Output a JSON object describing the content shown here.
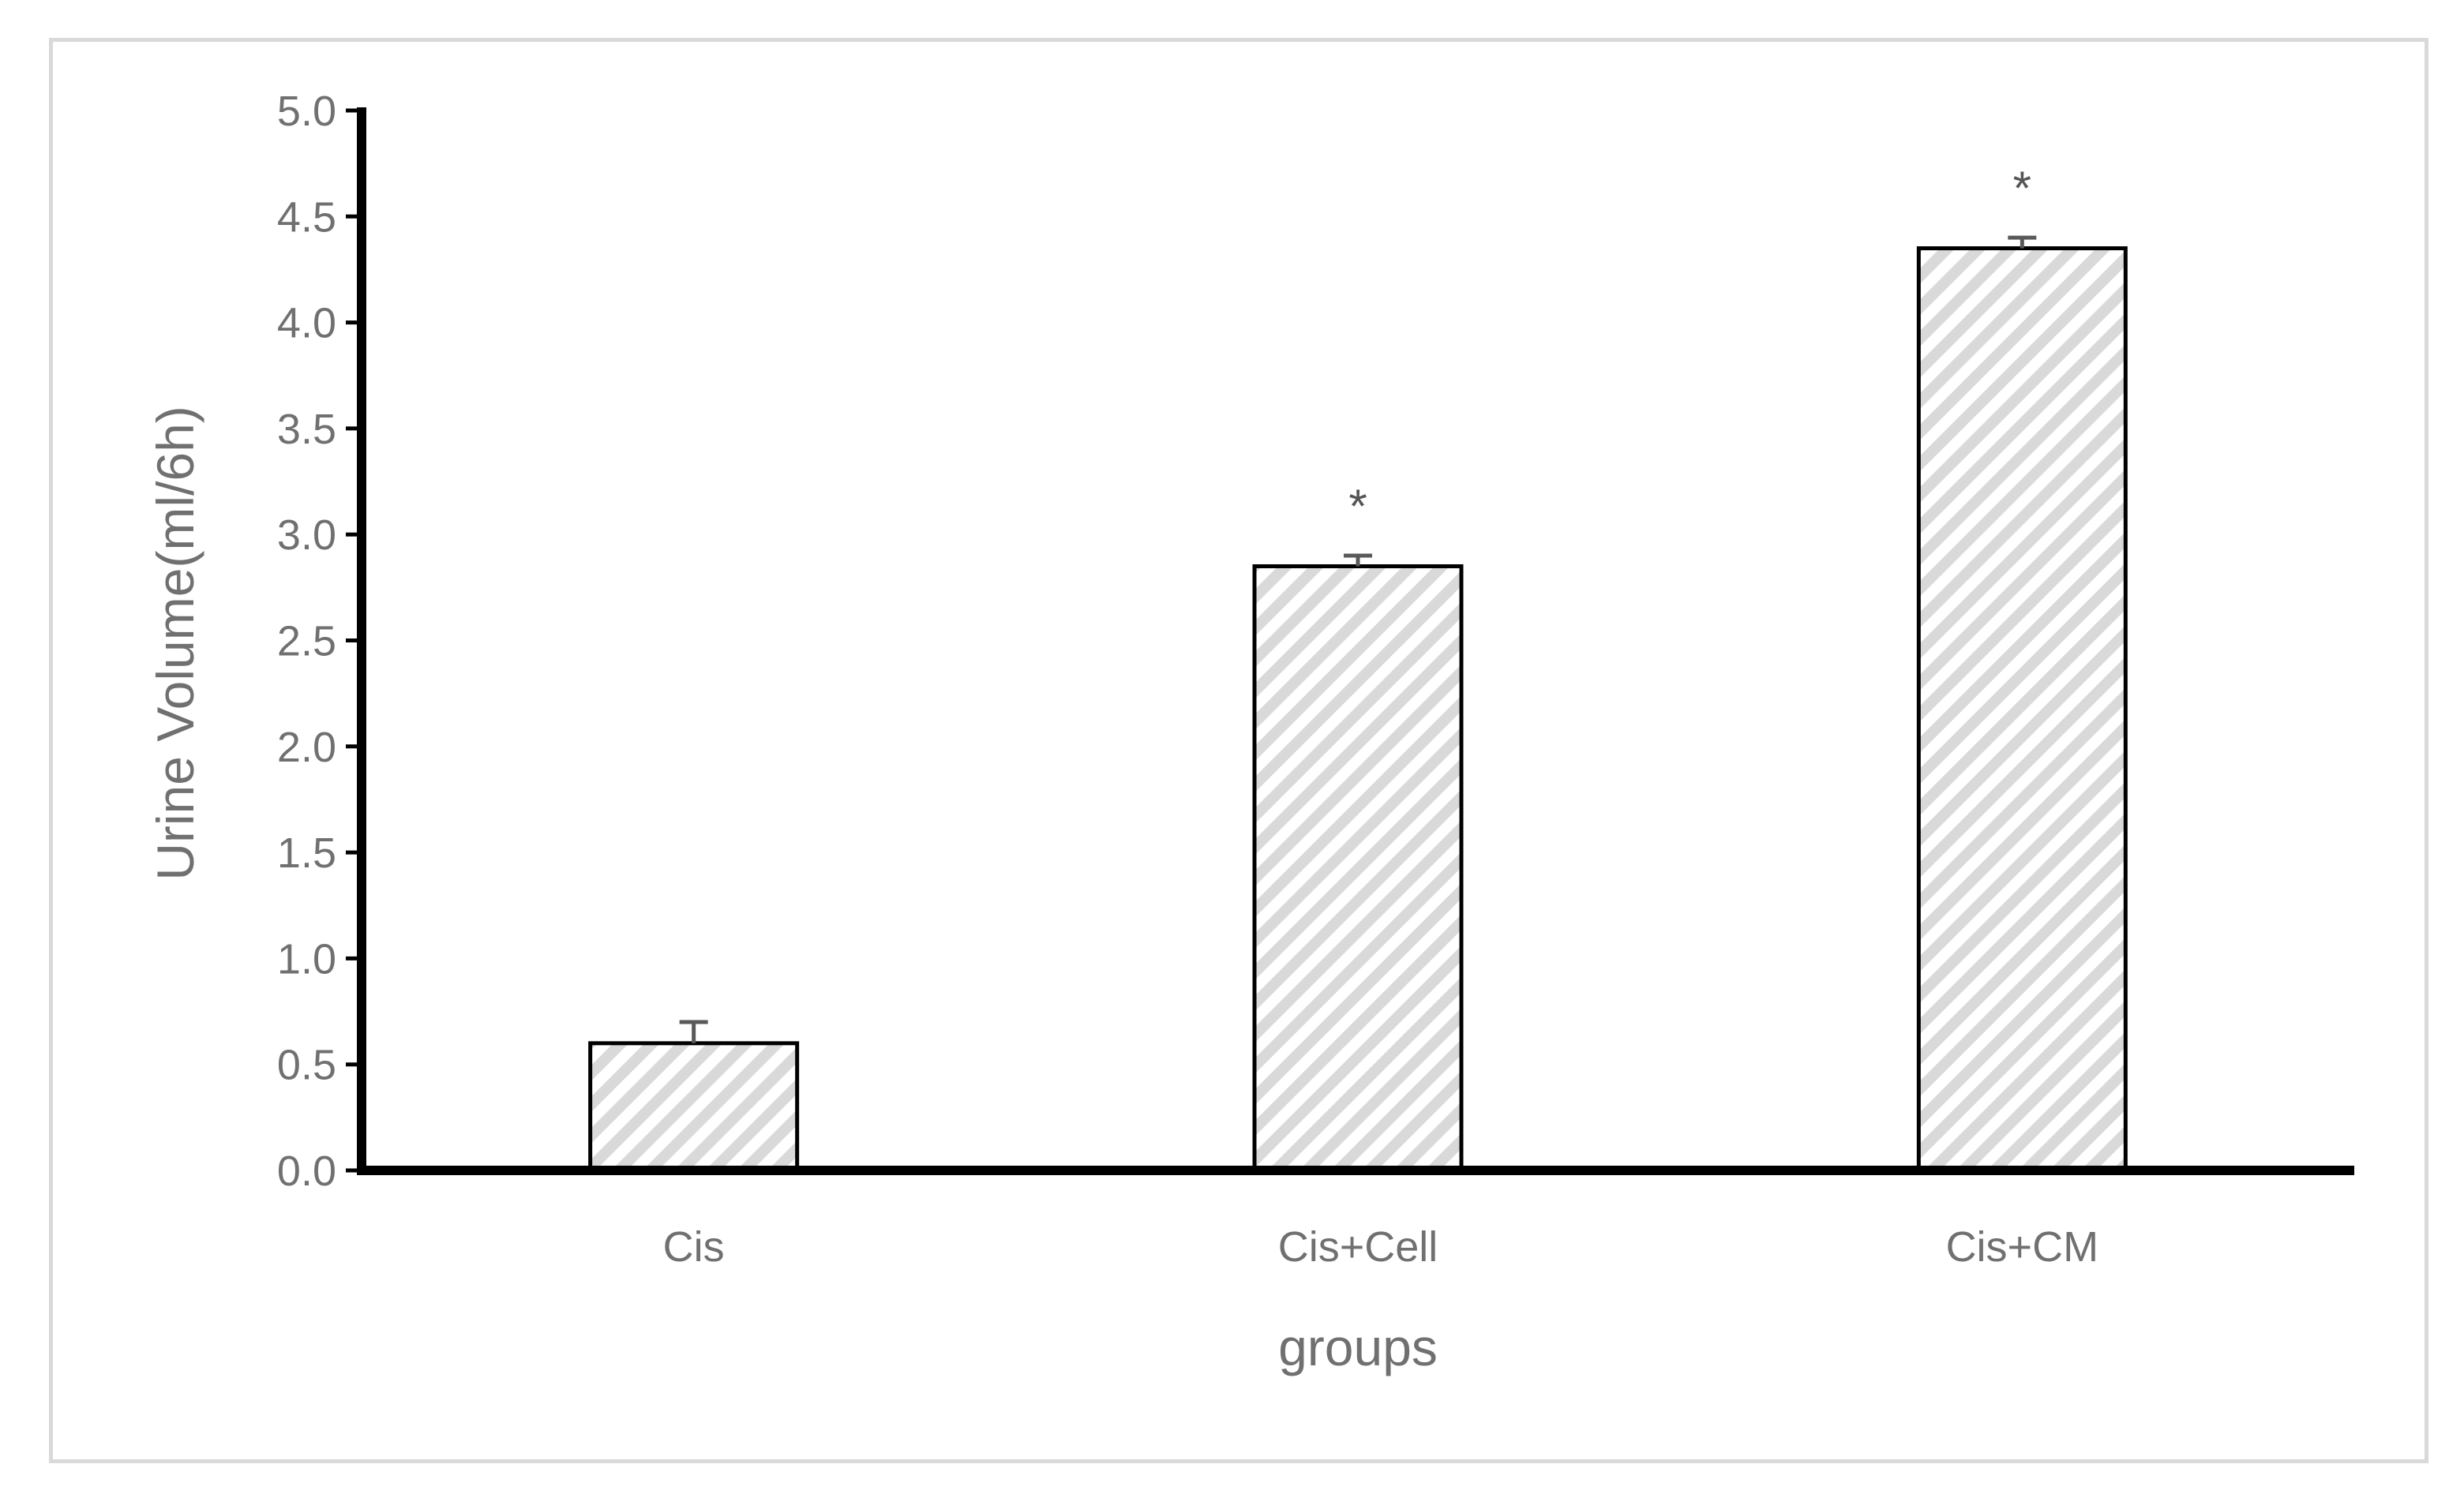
{
  "chart_data": {
    "type": "bar",
    "title": "",
    "xlabel": "groups",
    "ylabel": "Urine Volume(ml/6h)",
    "ylim": [
      0,
      5
    ],
    "ytick_step": 0.5,
    "ytick_labels": [
      "0.0",
      "0.5",
      "1.0",
      "1.5",
      "2.0",
      "2.5",
      "3.0",
      "3.5",
      "4.0",
      "4.5",
      "5.0"
    ],
    "categories": [
      "Cis",
      "Cis+Cell",
      "Cis+CM"
    ],
    "values": [
      0.6,
      2.85,
      4.35
    ],
    "error": [
      0.1,
      0.05,
      0.05
    ],
    "annotations": [
      "",
      "*",
      "*"
    ],
    "grid": false,
    "legend": "none",
    "fill_pattern": "diagonal-hatch",
    "colors": {
      "bar_stroke": "#000000",
      "hatch_light": "#d9d9d9",
      "hatch_background": "#ffffff",
      "axis": "#000000",
      "text": "#707070",
      "frame": "#d9d9d9"
    }
  }
}
